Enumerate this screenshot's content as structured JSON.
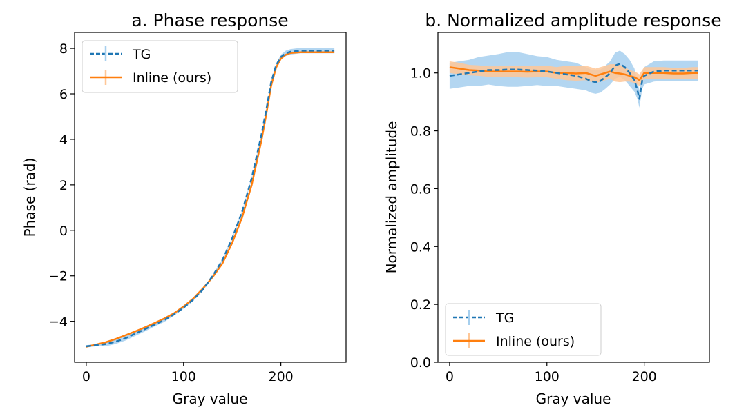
{
  "chart_data": [
    {
      "type": "line",
      "title": "a. Phase response",
      "xlabel": "Gray value",
      "ylabel": "Phase (rad)",
      "xlim": [
        -12,
        267
      ],
      "ylim": [
        -5.8,
        8.7
      ],
      "xticks": [
        0,
        100,
        200
      ],
      "xtick_labels": [
        "0",
        "100",
        "200"
      ],
      "yticks": [
        -4,
        -2,
        0,
        2,
        4,
        6,
        8
      ],
      "ytick_labels": [
        "−4",
        "−2",
        "0",
        "2",
        "4",
        "6",
        "8"
      ],
      "legend_position": "top-left",
      "series": [
        {
          "name": "TG",
          "style": "dashed",
          "color": "#1f77b4",
          "band_color": "#a6cfee",
          "x": [
            0,
            10,
            20,
            30,
            40,
            50,
            60,
            70,
            80,
            90,
            100,
            110,
            120,
            130,
            140,
            150,
            160,
            170,
            180,
            185,
            190,
            195,
            200,
            205,
            210,
            220,
            230,
            240,
            255
          ],
          "y": [
            -5.1,
            -5.05,
            -5.0,
            -4.9,
            -4.75,
            -4.55,
            -4.35,
            -4.15,
            -3.95,
            -3.7,
            -3.4,
            -3.05,
            -2.6,
            -2.0,
            -1.3,
            -0.35,
            0.8,
            2.3,
            4.2,
            5.3,
            6.5,
            7.25,
            7.62,
            7.78,
            7.85,
            7.9,
            7.9,
            7.9,
            7.9
          ],
          "err": [
            0.05,
            0.05,
            0.1,
            0.1,
            0.1,
            0.1,
            0.1,
            0.08,
            0.08,
            0.05,
            0.05,
            0.05,
            0.05,
            0.05,
            0.05,
            0.05,
            0.05,
            0.05,
            0.05,
            0.05,
            0.06,
            0.08,
            0.1,
            0.12,
            0.12,
            0.12,
            0.12,
            0.12,
            0.12
          ]
        },
        {
          "name": "Inline (ours)",
          "style": "solid",
          "color": "#ff7f0e",
          "band_color": "#ffc797",
          "x": [
            0,
            10,
            20,
            30,
            40,
            50,
            60,
            70,
            80,
            90,
            100,
            110,
            120,
            130,
            140,
            150,
            160,
            170,
            180,
            185,
            190,
            195,
            200,
            205,
            210,
            220,
            230,
            240,
            255
          ],
          "y": [
            -5.12,
            -5.02,
            -4.92,
            -4.78,
            -4.62,
            -4.45,
            -4.27,
            -4.08,
            -3.88,
            -3.65,
            -3.35,
            -3.0,
            -2.55,
            -2.05,
            -1.45,
            -0.55,
            0.55,
            2.0,
            3.95,
            5.1,
            6.35,
            7.15,
            7.55,
            7.72,
            7.8,
            7.83,
            7.83,
            7.83,
            7.83
          ],
          "err": [
            0.03,
            0.03,
            0.03,
            0.03,
            0.03,
            0.03,
            0.03,
            0.03,
            0.03,
            0.03,
            0.03,
            0.03,
            0.03,
            0.03,
            0.03,
            0.03,
            0.03,
            0.03,
            0.03,
            0.03,
            0.03,
            0.03,
            0.03,
            0.03,
            0.03,
            0.03,
            0.03,
            0.03,
            0.03
          ]
        }
      ]
    },
    {
      "type": "line",
      "title": "b. Normalized amplitude response",
      "xlabel": "Gray value",
      "ylabel": "Normalized amplitude",
      "xlim": [
        -12,
        267
      ],
      "ylim": [
        0.0,
        1.14
      ],
      "xticks": [
        0,
        100,
        200
      ],
      "xtick_labels": [
        "0",
        "100",
        "200"
      ],
      "yticks": [
        0.0,
        0.2,
        0.4,
        0.6,
        0.8,
        1.0
      ],
      "ytick_labels": [
        "0.0",
        "0.2",
        "0.4",
        "0.6",
        "0.8",
        "1.0"
      ],
      "legend_position": "bottom-left",
      "series": [
        {
          "name": "TG",
          "style": "dashed",
          "color": "#1f77b4",
          "band_color": "#a6cfee",
          "x": [
            0,
            10,
            20,
            30,
            40,
            50,
            60,
            70,
            80,
            90,
            100,
            110,
            120,
            130,
            140,
            145,
            150,
            155,
            160,
            165,
            170,
            175,
            180,
            185,
            190,
            193,
            195,
            198,
            200,
            210,
            220,
            230,
            240,
            250,
            255
          ],
          "y": [
            0.99,
            0.995,
            1.0,
            1.005,
            1.01,
            1.01,
            1.012,
            1.012,
            1.01,
            1.008,
            1.005,
            1.0,
            0.995,
            0.99,
            0.98,
            0.972,
            0.968,
            0.972,
            0.985,
            1.0,
            1.025,
            1.032,
            1.02,
            1.0,
            0.975,
            0.94,
            0.91,
            0.975,
            0.99,
            1.005,
            1.008,
            1.008,
            1.008,
            1.008,
            1.008
          ],
          "err": [
            0.045,
            0.045,
            0.045,
            0.05,
            0.05,
            0.055,
            0.06,
            0.06,
            0.055,
            0.05,
            0.05,
            0.045,
            0.045,
            0.045,
            0.04,
            0.04,
            0.04,
            0.04,
            0.04,
            0.04,
            0.045,
            0.045,
            0.045,
            0.045,
            0.04,
            0.03,
            0.03,
            0.03,
            0.03,
            0.035,
            0.035,
            0.035,
            0.035,
            0.035,
            0.035
          ]
        },
        {
          "name": "Inline (ours)",
          "style": "solid",
          "color": "#ff7f0e",
          "band_color": "#ffc797",
          "x": [
            0,
            10,
            20,
            30,
            40,
            50,
            60,
            70,
            80,
            90,
            100,
            110,
            120,
            130,
            140,
            145,
            150,
            155,
            160,
            165,
            170,
            175,
            180,
            185,
            190,
            193,
            195,
            198,
            200,
            210,
            220,
            230,
            240,
            250,
            255
          ],
          "y": [
            1.02,
            1.015,
            1.01,
            1.008,
            1.005,
            1.005,
            1.005,
            1.005,
            1.004,
            1.005,
            1.005,
            1.0,
            1.0,
            0.998,
            1.0,
            0.995,
            0.99,
            0.995,
            1.0,
            1.005,
            1.0,
            0.998,
            0.995,
            0.99,
            0.985,
            0.98,
            0.975,
            0.99,
            1.0,
            1.0,
            1.0,
            0.998,
            0.998,
            1.0,
            1.0
          ],
          "err": [
            0.02,
            0.02,
            0.018,
            0.018,
            0.018,
            0.018,
            0.02,
            0.02,
            0.02,
            0.02,
            0.02,
            0.02,
            0.025,
            0.025,
            0.025,
            0.025,
            0.025,
            0.025,
            0.025,
            0.025,
            0.03,
            0.03,
            0.025,
            0.02,
            0.02,
            0.02,
            0.02,
            0.02,
            0.02,
            0.02,
            0.02,
            0.02,
            0.02,
            0.02,
            0.02
          ]
        }
      ]
    }
  ]
}
